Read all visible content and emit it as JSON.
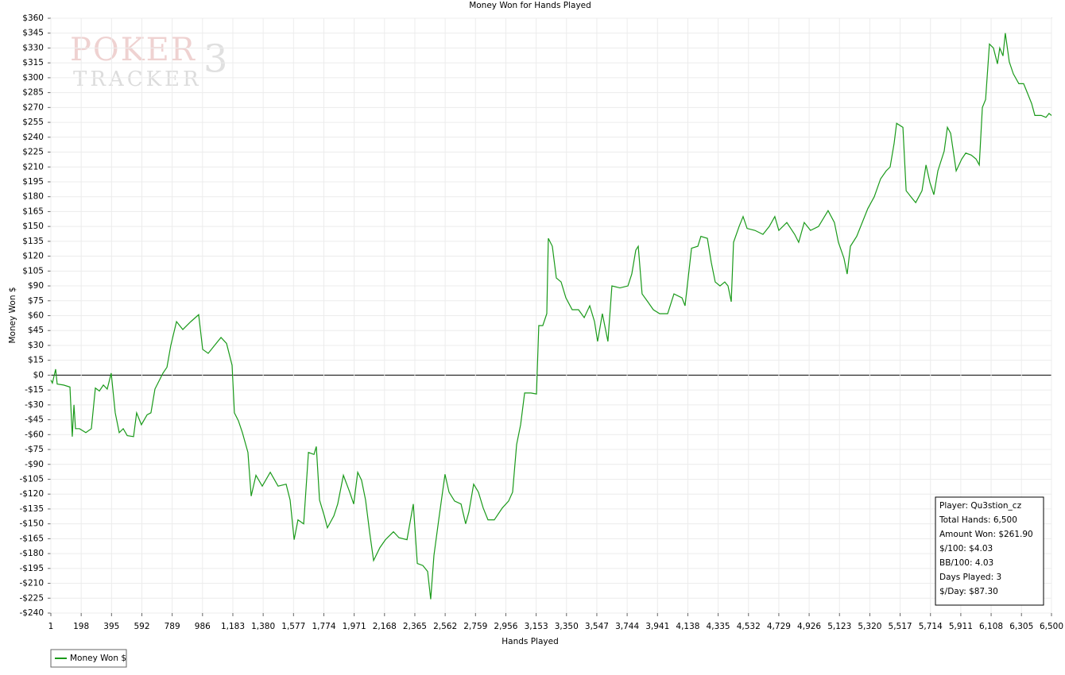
{
  "chart_data": {
    "type": "line",
    "title": "Money Won for Hands Played",
    "x_label": "Hands Played",
    "y_label": "Money Won $",
    "watermark": {
      "brand": "POKER",
      "product": "TRACKER",
      "version": "3"
    },
    "annotations": [
      "Player: Qu3stion_cz",
      "Total Hands: 6,500",
      "Amount Won: $261.90",
      "$/100: $4.03",
      "BB/100: 4.03",
      "Days Played: 3",
      "$/Day: $87.30"
    ],
    "grid": true,
    "legend": "bottom-left",
    "xlim": [
      1,
      6500
    ],
    "ylim": [
      -240,
      360
    ],
    "xticks": [
      1,
      198,
      395,
      592,
      789,
      986,
      {
        "value": 1183,
        "label": "1,183"
      },
      {
        "value": 1380,
        "label": "1,380"
      },
      {
        "value": 1577,
        "label": "1,577"
      },
      {
        "value": 1774,
        "label": "1,774"
      },
      {
        "value": 1971,
        "label": "1,971"
      },
      {
        "value": 2168,
        "label": "2,168"
      },
      {
        "value": 2365,
        "label": "2,365"
      },
      {
        "value": 2562,
        "label": "2,562"
      },
      {
        "value": 2759,
        "label": "2,759"
      },
      {
        "value": 2956,
        "label": "2,956"
      },
      {
        "value": 3153,
        "label": "3,153"
      },
      {
        "value": 3350,
        "label": "3,350"
      },
      {
        "value": 3547,
        "label": "3,547"
      },
      {
        "value": 3744,
        "label": "3,744"
      },
      {
        "value": 3941,
        "label": "3,941"
      },
      {
        "value": 4138,
        "label": "4,138"
      },
      {
        "value": 4335,
        "label": "4,335"
      },
      {
        "value": 4532,
        "label": "4,532"
      },
      {
        "value": 4729,
        "label": "4,729"
      },
      {
        "value": 4926,
        "label": "4,926"
      },
      {
        "value": 5123,
        "label": "5,123"
      },
      {
        "value": 5320,
        "label": "5,320"
      },
      {
        "value": 5517,
        "label": "5,517"
      },
      {
        "value": 5714,
        "label": "5,714"
      },
      {
        "value": 5911,
        "label": "5,911"
      },
      {
        "value": 6108,
        "label": "6,108"
      },
      {
        "value": 6305,
        "label": "6,305"
      },
      {
        "value": 6500,
        "label": "6,500"
      }
    ],
    "yticks": [
      {
        "value": 360,
        "label": "$360"
      },
      {
        "value": 345,
        "label": "$345"
      },
      {
        "value": 330,
        "label": "$330"
      },
      {
        "value": 315,
        "label": "$315"
      },
      {
        "value": 300,
        "label": "$300"
      },
      {
        "value": 285,
        "label": "$285"
      },
      {
        "value": 270,
        "label": "$270"
      },
      {
        "value": 255,
        "label": "$255"
      },
      {
        "value": 240,
        "label": "$240"
      },
      {
        "value": 225,
        "label": "$225"
      },
      {
        "value": 210,
        "label": "$210"
      },
      {
        "value": 195,
        "label": "$195"
      },
      {
        "value": 180,
        "label": "$180"
      },
      {
        "value": 165,
        "label": "$165"
      },
      {
        "value": 150,
        "label": "$150"
      },
      {
        "value": 135,
        "label": "$135"
      },
      {
        "value": 120,
        "label": "$120"
      },
      {
        "value": 105,
        "label": "$105"
      },
      {
        "value": 90,
        "label": "$90"
      },
      {
        "value": 75,
        "label": "$75"
      },
      {
        "value": 60,
        "label": "$60"
      },
      {
        "value": 45,
        "label": "$45"
      },
      {
        "value": 30,
        "label": "$30"
      },
      {
        "value": 15,
        "label": "$15"
      },
      {
        "value": 0,
        "label": "$0"
      },
      {
        "value": -15,
        "label": "-$15"
      },
      {
        "value": -30,
        "label": "-$30"
      },
      {
        "value": -45,
        "label": "-$45"
      },
      {
        "value": -60,
        "label": "-$60"
      },
      {
        "value": -75,
        "label": "-$75"
      },
      {
        "value": -90,
        "label": "-$90"
      },
      {
        "value": -105,
        "label": "-$105"
      },
      {
        "value": -120,
        "label": "-$120"
      },
      {
        "value": -135,
        "label": "-$135"
      },
      {
        "value": -150,
        "label": "-$150"
      },
      {
        "value": -165,
        "label": "-$165"
      },
      {
        "value": -180,
        "label": "-$180"
      },
      {
        "value": -195,
        "label": "-$195"
      },
      {
        "value": -210,
        "label": "-$210"
      },
      {
        "value": -225,
        "label": "-$225"
      },
      {
        "value": -240,
        "label": "-$240"
      }
    ],
    "x": [
      1,
      11,
      32,
      42,
      84,
      125,
      140,
      151,
      161,
      187,
      228,
      264,
      290,
      316,
      342,
      367,
      393,
      419,
      445,
      471,
      497,
      538,
      558,
      589,
      626,
      651,
      677,
      729,
      755,
      780,
      817,
      858,
      910,
      961,
      987,
      1023,
      1064,
      1106,
      1142,
      1178,
      1193,
      1219,
      1245,
      1281,
      1302,
      1333,
      1374,
      1426,
      1477,
      1529,
      1555,
      1581,
      1606,
      1643,
      1674,
      1710,
      1725,
      1746,
      1777,
      1797,
      1839,
      1864,
      1901,
      1942,
      1968,
      1994,
      2019,
      2045,
      2071,
      2097,
      2138,
      2174,
      2226,
      2262,
      2314,
      2355,
      2381,
      2417,
      2448,
      2468,
      2489,
      2520,
      2561,
      2587,
      2623,
      2665,
      2695,
      2716,
      2747,
      2778,
      2809,
      2840,
      2881,
      2933,
      2974,
      3000,
      3026,
      3052,
      3078,
      3119,
      3155,
      3170,
      3196,
      3222,
      3232,
      3258,
      3284,
      3315,
      3346,
      3387,
      3428,
      3465,
      3501,
      3532,
      3552,
      3583,
      3619,
      3645,
      3697,
      3749,
      3774,
      3800,
      3816,
      3841,
      3878,
      3914,
      3955,
      4007,
      4048,
      4100,
      4120,
      4162,
      4203,
      4223,
      4265,
      4290,
      4316,
      4347,
      4378,
      4399,
      4420,
      4435,
      4471,
      4497,
      4523,
      4574,
      4626,
      4667,
      4703,
      4729,
      4781,
      4832,
      4858,
      4894,
      4935,
      4987,
      5049,
      5090,
      5116,
      5152,
      5173,
      5194,
      5235,
      5271,
      5307,
      5349,
      5390,
      5426,
      5452,
      5478,
      5494,
      5535,
      5556,
      5597,
      5618,
      5659,
      5685,
      5711,
      5736,
      5762,
      5803,
      5824,
      5845,
      5881,
      5917,
      5943,
      5979,
      6010,
      6031,
      6051,
      6072,
      6097,
      6123,
      6149,
      6164,
      6185,
      6200,
      6226,
      6252,
      6288,
      6319,
      6340,
      6371,
      6392,
      6433,
      6464,
      6484,
      6500
    ],
    "series": [
      {
        "name": "Money Won $",
        "color": "#1a9a1a",
        "values": [
          -5,
          -8,
          6,
          -9,
          -10,
          -12,
          -62,
          -30,
          -54,
          -54,
          -58,
          -54,
          -13,
          -16,
          -10,
          -14,
          2,
          -38,
          -58,
          -54,
          -61,
          -62,
          -38,
          -50,
          -40,
          -38,
          -14,
          2,
          8,
          30,
          54,
          46,
          54,
          61,
          26,
          22,
          30,
          38,
          32,
          10,
          -38,
          -46,
          -58,
          -78,
          -122,
          -101,
          -112,
          -98,
          -112,
          -110,
          -126,
          -166,
          -146,
          -150,
          -78,
          -80,
          -72,
          -126,
          -142,
          -154,
          -142,
          -130,
          -101,
          -118,
          -130,
          -98,
          -106,
          -126,
          -158,
          -187,
          -174,
          -166,
          -158,
          -164,
          -166,
          -130,
          -190,
          -192,
          -198,
          -226,
          -182,
          -146,
          -100,
          -118,
          -127,
          -130,
          -150,
          -138,
          -110,
          -118,
          -134,
          -146,
          -146,
          -134,
          -127,
          -118,
          -70,
          -50,
          -18,
          -18,
          -19,
          50,
          50,
          62,
          138,
          130,
          98,
          94,
          78,
          66,
          66,
          58,
          70,
          54,
          34,
          62,
          34,
          90,
          88,
          90,
          102,
          126,
          130,
          82,
          74,
          66,
          62,
          62,
          82,
          78,
          70,
          128,
          130,
          140,
          138,
          114,
          94,
          90,
          94,
          90,
          74,
          134,
          150,
          160,
          148,
          146,
          142,
          150,
          160,
          146,
          154,
          142,
          134,
          154,
          146,
          150,
          166,
          154,
          134,
          118,
          102,
          130,
          140,
          154,
          168,
          180,
          198,
          206,
          210,
          234,
          254,
          250,
          186,
          178,
          174,
          186,
          212,
          194,
          182,
          206,
          226,
          250,
          244,
          206,
          218,
          224,
          222,
          218,
          212,
          270,
          278,
          334,
          330,
          314,
          330,
          322,
          345,
          316,
          304,
          294,
          294,
          286,
          274,
          262,
          262,
          260,
          264,
          261.9
        ]
      }
    ]
  }
}
